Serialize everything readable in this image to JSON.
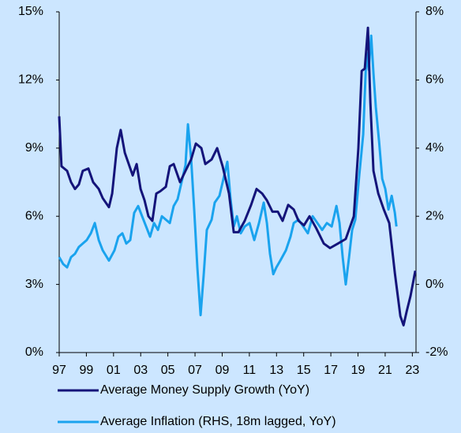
{
  "chart_data": {
    "type": "line",
    "xlim": [
      1997,
      2023.27
    ],
    "xticks": [
      {
        "value": 1997,
        "label": "97"
      },
      {
        "value": 1999,
        "label": "99"
      },
      {
        "value": 2001,
        "label": "01"
      },
      {
        "value": 2003,
        "label": "03"
      },
      {
        "value": 2005,
        "label": "05"
      },
      {
        "value": 2007,
        "label": "07"
      },
      {
        "value": 2009,
        "label": "09"
      },
      {
        "value": 2011,
        "label": "11"
      },
      {
        "value": 2013,
        "label": "13"
      },
      {
        "value": 2015,
        "label": "15"
      },
      {
        "value": 2017,
        "label": "17"
      },
      {
        "value": 2019,
        "label": "19"
      },
      {
        "value": 2021,
        "label": "21"
      },
      {
        "value": 2023,
        "label": "23"
      }
    ],
    "ylim": [
      0,
      15
    ],
    "yticks": [
      {
        "value": 0,
        "label": "0%"
      },
      {
        "value": 3,
        "label": "3%"
      },
      {
        "value": 6,
        "label": "6%"
      },
      {
        "value": 9,
        "label": "9%"
      },
      {
        "value": 12,
        "label": "12%"
      },
      {
        "value": 15,
        "label": "15%"
      }
    ],
    "y2lim": [
      -2,
      8
    ],
    "y2ticks": [
      {
        "value": -2,
        "label": "-2%"
      },
      {
        "value": 0,
        "label": "0%"
      },
      {
        "value": 2,
        "label": "2%"
      },
      {
        "value": 4,
        "label": "4%"
      },
      {
        "value": 6,
        "label": "6%"
      },
      {
        "value": 8,
        "label": "8%"
      }
    ],
    "legend": "bottom",
    "series": [
      {
        "name": "Average Money Supply Growth (YoY)",
        "color": "#14147a",
        "axis": "y",
        "x": [
          1997.0,
          1997.17,
          1997.58,
          1997.87,
          1998.16,
          1998.45,
          1998.74,
          1999.15,
          1999.5,
          1999.91,
          2000.2,
          2000.66,
          2000.9,
          2001.24,
          2001.53,
          2001.83,
          2002.12,
          2002.41,
          2002.7,
          2002.99,
          2003.28,
          2003.57,
          2003.86,
          2004.15,
          2004.44,
          2004.85,
          2005.14,
          2005.43,
          2005.9,
          2006.3,
          2006.71,
          2007.06,
          2007.47,
          2007.76,
          2008.22,
          2008.63,
          2009.03,
          2009.5,
          2009.85,
          2010.2,
          2010.66,
          2011.13,
          2011.53,
          2011.94,
          2012.29,
          2012.7,
          2013.1,
          2013.45,
          2013.86,
          2014.27,
          2014.62,
          2015.02,
          2015.43,
          2015.9,
          2016.48,
          2016.94,
          2017.52,
          2018.1,
          2018.69,
          2019.03,
          2019.27,
          2019.5,
          2019.73,
          2019.91,
          2020.14,
          2020.49,
          2020.9,
          2021.3,
          2021.71,
          2022.12,
          2022.35,
          2022.58,
          2022.87,
          2023.22
        ],
        "values": [
          10.4,
          8.2,
          8,
          7.5,
          7.2,
          7.4,
          8.0,
          8.1,
          7.5,
          7.2,
          6.8,
          6.4,
          7,
          9,
          9.8,
          8.8,
          8.3,
          7.8,
          8.3,
          7.2,
          6.7,
          6,
          5.8,
          7,
          7.1,
          7.3,
          8.2,
          8.3,
          7.5,
          8,
          8.5,
          9.2,
          9,
          8.3,
          8.5,
          9,
          8.2,
          7,
          5.3,
          5.3,
          5.8,
          6.5,
          7.2,
          7.0,
          6.7,
          6.2,
          6.2,
          5.8,
          6.5,
          6.3,
          5.8,
          5.6,
          6,
          5.5,
          4.8,
          4.6,
          4.8,
          5,
          6,
          9,
          12.4,
          12.5,
          14.3,
          11,
          8,
          7,
          6.3,
          5.7,
          3.5,
          1.6,
          1.2,
          1.8,
          2.5,
          3.6
        ]
      },
      {
        "name": "Average Inflation (RHS, 18m lagged, YoY)",
        "color": "#1aa3ee",
        "axis": "y2",
        "x": [
          1997.0,
          1997.29,
          1997.58,
          1997.87,
          1998.16,
          1998.45,
          1998.74,
          1999.03,
          1999.33,
          1999.62,
          1999.91,
          2000.2,
          2000.66,
          2001.07,
          2001.36,
          2001.65,
          2001.94,
          2002.23,
          2002.52,
          2002.81,
          2003.1,
          2003.4,
          2003.69,
          2003.98,
          2004.27,
          2004.56,
          2004.85,
          2005.14,
          2005.43,
          2005.72,
          2006.01,
          2006.3,
          2006.48,
          2006.71,
          2006.94,
          2007.17,
          2007.41,
          2007.64,
          2007.87,
          2008.22,
          2008.45,
          2008.8,
          2009.15,
          2009.38,
          2009.62,
          2009.85,
          2010.08,
          2010.37,
          2010.66,
          2011.01,
          2011.36,
          2011.71,
          2012.06,
          2012.29,
          2012.52,
          2012.76,
          2012.99,
          2013.28,
          2013.69,
          2014.03,
          2014.27,
          2014.62,
          2014.97,
          2015.31,
          2015.66,
          2016.01,
          2016.36,
          2016.71,
          2017.06,
          2017.41,
          2017.64,
          2017.87,
          2018.1,
          2018.34,
          2018.57,
          2018.8,
          2019.09,
          2019.38,
          2019.62,
          2019.79,
          2019.97,
          2020.14,
          2020.31,
          2020.55,
          2020.78,
          2021.01,
          2021.24,
          2021.48,
          2021.71,
          2021.83
        ],
        "values": [
          0.8,
          0.6,
          0.5,
          0.8,
          0.9,
          1.1,
          1.2,
          1.3,
          1.5,
          1.8,
          1.3,
          1.0,
          0.7,
          1.0,
          1.4,
          1.5,
          1.2,
          1.3,
          2.1,
          2.3,
          2.0,
          1.7,
          1.4,
          1.8,
          1.6,
          2.0,
          1.9,
          1.8,
          2.3,
          2.5,
          3.0,
          3.5,
          4.7,
          3.7,
          2.2,
          0.5,
          -0.9,
          0.3,
          1.6,
          1.9,
          2.4,
          2.6,
          3.2,
          3.6,
          2.5,
          1.7,
          2.0,
          1.5,
          1.7,
          1.8,
          1.3,
          1.8,
          2.4,
          1.8,
          0.9,
          0.3,
          0.5,
          0.7,
          1.0,
          1.4,
          1.8,
          1.9,
          1.7,
          1.5,
          2.0,
          1.8,
          1.6,
          1.8,
          1.7,
          2.3,
          1.8,
          0.8,
          0.0,
          0.8,
          1.6,
          1.9,
          3.2,
          4.4,
          6.8,
          6.3,
          7.3,
          6.2,
          5.2,
          4.2,
          3.1,
          2.8,
          2.2,
          2.6,
          2.1,
          1.7
        ]
      }
    ]
  }
}
